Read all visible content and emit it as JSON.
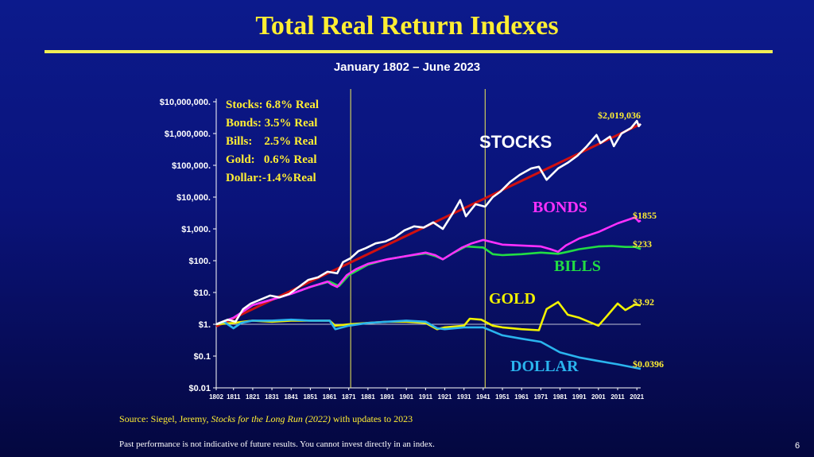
{
  "slide": {
    "title": "Total Real Return Indexes",
    "subtitle": "January 1802 – June 2023",
    "source_prefix": "Source: Siegel, Jeremy, ",
    "source_book": "Stocks for the Long Run (2022)",
    "source_suffix": " with updates to 2023",
    "disclaimer": "Past performance is not indicative of future results. You cannot invest directly in an index.",
    "page_number": "6"
  },
  "chart_data": {
    "type": "line",
    "y_scale": "log",
    "ylim": [
      0.01,
      10000000
    ],
    "xlim": [
      1802,
      2023
    ],
    "y_tick_labels": [
      "$10,000,000.",
      "$1,000,000.",
      "$100,000.",
      "$10,000.",
      "$1,000.",
      "$100.",
      "$10.",
      "$1.",
      "$0.1",
      "$0.01"
    ],
    "y_tick_values": [
      10000000,
      1000000,
      100000,
      10000,
      1000,
      100,
      10,
      1,
      0.1,
      0.01
    ],
    "x_tick_labels": [
      "1802",
      "1811",
      "1821",
      "1831",
      "1841",
      "1851",
      "1861",
      "1871",
      "1881",
      "1891",
      "1901",
      "1911",
      "1921",
      "1931",
      "1941",
      "1951",
      "1961",
      "1971",
      "1981",
      "1991",
      "2001",
      "2011",
      "2021"
    ],
    "grid": false,
    "vertical_markers": [
      1872,
      1942
    ],
    "legend_box": [
      "Stocks: 6.8% Real",
      "Bonds: 3.5% Real",
      "Bills:    2.5% Real",
      "Gold:   0.6% Real",
      "Dollar:-1.4%Real"
    ],
    "series": [
      {
        "name": "STOCKS",
        "color": "#ffffff",
        "end_label": "$2,019,036",
        "points": [
          [
            1802,
            1
          ],
          [
            1808,
            1.4
          ],
          [
            1812,
            1.2
          ],
          [
            1816,
            3
          ],
          [
            1820,
            4.5
          ],
          [
            1825,
            6
          ],
          [
            1830,
            8
          ],
          [
            1835,
            7
          ],
          [
            1840,
            9
          ],
          [
            1845,
            15
          ],
          [
            1850,
            25
          ],
          [
            1855,
            30
          ],
          [
            1860,
            45
          ],
          [
            1865,
            40
          ],
          [
            1868,
            90
          ],
          [
            1872,
            120
          ],
          [
            1876,
            200
          ],
          [
            1880,
            250
          ],
          [
            1885,
            350
          ],
          [
            1890,
            400
          ],
          [
            1895,
            550
          ],
          [
            1900,
            900
          ],
          [
            1905,
            1200
          ],
          [
            1910,
            1100
          ],
          [
            1915,
            1600
          ],
          [
            1920,
            1000
          ],
          [
            1925,
            3000
          ],
          [
            1929,
            8000
          ],
          [
            1932,
            2500
          ],
          [
            1937,
            6000
          ],
          [
            1942,
            5000
          ],
          [
            1946,
            10000
          ],
          [
            1950,
            15000
          ],
          [
            1955,
            30000
          ],
          [
            1960,
            50000
          ],
          [
            1966,
            80000
          ],
          [
            1970,
            90000
          ],
          [
            1974,
            35000
          ],
          [
            1980,
            80000
          ],
          [
            1985,
            120000
          ],
          [
            1990,
            200000
          ],
          [
            1995,
            400000
          ],
          [
            2000,
            900000
          ],
          [
            2002,
            500000
          ],
          [
            2007,
            800000
          ],
          [
            2009,
            400000
          ],
          [
            2013,
            1000000
          ],
          [
            2018,
            1500000
          ],
          [
            2021,
            2500000
          ],
          [
            2022,
            1700000
          ],
          [
            2023,
            2019036
          ]
        ]
      },
      {
        "name": "Trend",
        "color": "#d01010",
        "points": [
          [
            1802,
            0.85
          ],
          [
            2023,
            2000000
          ]
        ]
      },
      {
        "name": "BONDS",
        "color": "#ff30ff",
        "end_label": "$1855",
        "points": [
          [
            1802,
            1
          ],
          [
            1811,
            1.6
          ],
          [
            1821,
            4
          ],
          [
            1831,
            6
          ],
          [
            1841,
            9
          ],
          [
            1851,
            15
          ],
          [
            1860,
            22
          ],
          [
            1862,
            18
          ],
          [
            1865,
            15
          ],
          [
            1870,
            35
          ],
          [
            1875,
            55
          ],
          [
            1881,
            80
          ],
          [
            1891,
            110
          ],
          [
            1901,
            140
          ],
          [
            1911,
            180
          ],
          [
            1916,
            150
          ],
          [
            1920,
            110
          ],
          [
            1925,
            170
          ],
          [
            1930,
            260
          ],
          [
            1935,
            350
          ],
          [
            1941,
            450
          ],
          [
            1946,
            380
          ],
          [
            1951,
            320
          ],
          [
            1961,
            300
          ],
          [
            1971,
            280
          ],
          [
            1976,
            230
          ],
          [
            1980,
            190
          ],
          [
            1984,
            300
          ],
          [
            1991,
            500
          ],
          [
            2001,
            800
          ],
          [
            2011,
            1500
          ],
          [
            2020,
            2300
          ],
          [
            2022,
            1700
          ],
          [
            2023,
            1855
          ]
        ]
      },
      {
        "name": "BILLS",
        "color": "#22dd44",
        "end_label": "$233",
        "points": [
          [
            1802,
            1
          ],
          [
            1811,
            1.6
          ],
          [
            1821,
            4
          ],
          [
            1831,
            6
          ],
          [
            1841,
            9
          ],
          [
            1851,
            15
          ],
          [
            1861,
            22
          ],
          [
            1864,
            18
          ],
          [
            1866,
            16
          ],
          [
            1871,
            35
          ],
          [
            1881,
            75
          ],
          [
            1891,
            110
          ],
          [
            1901,
            140
          ],
          [
            1911,
            170
          ],
          [
            1916,
            140
          ],
          [
            1920,
            110
          ],
          [
            1925,
            170
          ],
          [
            1932,
            280
          ],
          [
            1941,
            260
          ],
          [
            1946,
            160
          ],
          [
            1951,
            150
          ],
          [
            1961,
            160
          ],
          [
            1971,
            180
          ],
          [
            1980,
            165
          ],
          [
            1985,
            190
          ],
          [
            1991,
            230
          ],
          [
            2001,
            280
          ],
          [
            2008,
            290
          ],
          [
            2015,
            270
          ],
          [
            2020,
            270
          ],
          [
            2023,
            233
          ]
        ]
      },
      {
        "name": "GOLD",
        "color": "#f2f200",
        "end_label": "$3.92",
        "points": [
          [
            1802,
            1
          ],
          [
            1811,
            1.1
          ],
          [
            1821,
            1.3
          ],
          [
            1831,
            1.2
          ],
          [
            1841,
            1.3
          ],
          [
            1851,
            1.3
          ],
          [
            1861,
            1.3
          ],
          [
            1864,
            0.9
          ],
          [
            1871,
            1
          ],
          [
            1881,
            1.1
          ],
          [
            1891,
            1.2
          ],
          [
            1901,
            1.2
          ],
          [
            1911,
            1.1
          ],
          [
            1917,
            0.7
          ],
          [
            1921,
            0.8
          ],
          [
            1931,
            0.9
          ],
          [
            1934,
            1.5
          ],
          [
            1940,
            1.4
          ],
          [
            1946,
            0.9
          ],
          [
            1951,
            0.8
          ],
          [
            1961,
            0.7
          ],
          [
            1970,
            0.65
          ],
          [
            1974,
            3
          ],
          [
            1980,
            5
          ],
          [
            1985,
            2
          ],
          [
            1991,
            1.6
          ],
          [
            2001,
            0.9
          ],
          [
            2006,
            2
          ],
          [
            2011,
            4.5
          ],
          [
            2015,
            2.8
          ],
          [
            2020,
            4.2
          ],
          [
            2023,
            3.92
          ]
        ]
      },
      {
        "name": "DOLLAR",
        "color": "#2ab4ee",
        "end_label": "$0.0396",
        "points": [
          [
            1802,
            1
          ],
          [
            1806,
            1.2
          ],
          [
            1811,
            0.75
          ],
          [
            1815,
            1.1
          ],
          [
            1821,
            1.3
          ],
          [
            1831,
            1.3
          ],
          [
            1841,
            1.4
          ],
          [
            1851,
            1.3
          ],
          [
            1861,
            1.3
          ],
          [
            1864,
            0.7
          ],
          [
            1871,
            0.9
          ],
          [
            1881,
            1.1
          ],
          [
            1891,
            1.2
          ],
          [
            1901,
            1.3
          ],
          [
            1911,
            1.2
          ],
          [
            1917,
            0.75
          ],
          [
            1921,
            0.7
          ],
          [
            1931,
            0.8
          ],
          [
            1941,
            0.8
          ],
          [
            1951,
            0.45
          ],
          [
            1961,
            0.35
          ],
          [
            1971,
            0.28
          ],
          [
            1981,
            0.13
          ],
          [
            1991,
            0.09
          ],
          [
            2001,
            0.07
          ],
          [
            2011,
            0.055
          ],
          [
            2023,
            0.0396
          ]
        ]
      }
    ]
  }
}
